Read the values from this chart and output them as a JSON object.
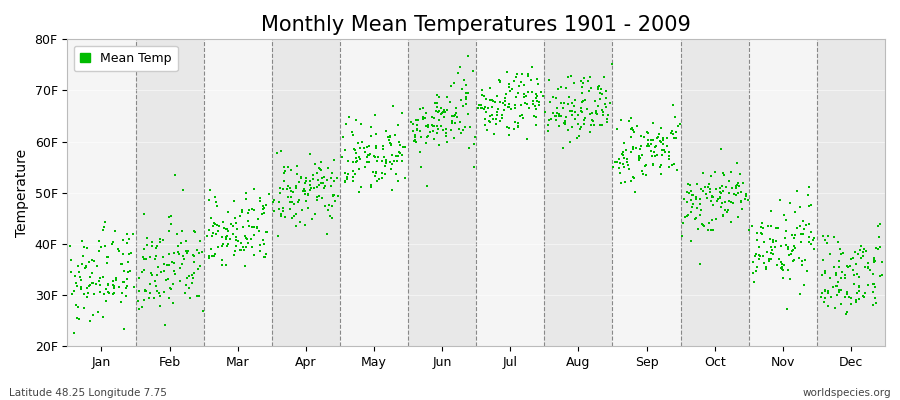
{
  "title": "Monthly Mean Temperatures 1901 - 2009",
  "ylabel": "Temperature",
  "xlabel_labels": [
    "Jan",
    "Feb",
    "Mar",
    "Apr",
    "May",
    "Jun",
    "Jul",
    "Aug",
    "Sep",
    "Oct",
    "Nov",
    "Dec"
  ],
  "ylim": [
    20,
    80
  ],
  "yticks": [
    20,
    30,
    40,
    50,
    60,
    70,
    80
  ],
  "ytick_labels": [
    "20F",
    "30F",
    "40F",
    "50F",
    "60F",
    "70F",
    "80F"
  ],
  "legend_label": "Mean Temp",
  "dot_color": "#00bb00",
  "dot_size": 3,
  "background_color": "#ffffff",
  "plot_bg_color": "#ffffff",
  "band_color_light": "#f5f5f5",
  "band_color_dark": "#e8e8e8",
  "grid_color": "#888888",
  "bottom_left_text": "Latitude 48.25 Longitude 7.75",
  "bottom_right_text": "worldspecies.org",
  "monthly_means_f": [
    34.0,
    35.5,
    42.5,
    50.0,
    57.5,
    64.0,
    67.5,
    66.5,
    58.0,
    49.0,
    40.0,
    34.5
  ],
  "monthly_stds_f": [
    4.5,
    4.5,
    4.0,
    3.5,
    3.5,
    3.5,
    3.0,
    3.0,
    3.5,
    3.5,
    4.0,
    4.0
  ],
  "n_years": 109,
  "title_fontsize": 15,
  "axis_fontsize": 10,
  "tick_fontsize": 9
}
